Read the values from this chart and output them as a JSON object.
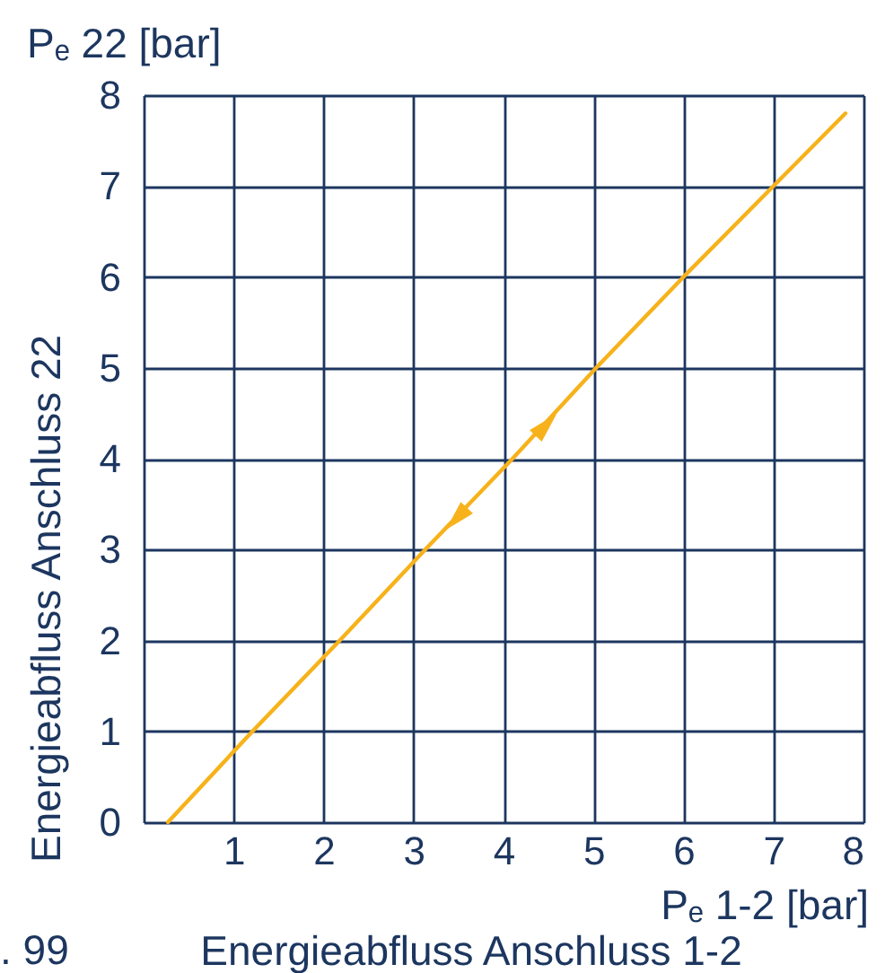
{
  "chart_data": {
    "type": "line",
    "xlabel": "Energieabfluss Anschluss 1-2",
    "ylabel": "Energieabfluss Anschluss 22",
    "annotations": [
      "Pₑ 22 [bar]",
      "Pₑ 1-2 [bar]",
      ". 99"
    ],
    "series": [
      {
        "color": "#f7b21b",
        "x": [
          0.27,
          1.21,
          2.18,
          3.13,
          4.1,
          5.03,
          6,
          7,
          7.8
        ],
        "values": [
          0,
          1,
          2,
          3,
          4,
          5,
          6,
          7,
          7.8
        ]
      },
      {
        "type": "scatter",
        "marker": "triangle",
        "color": "#f7b21b",
        "x": [
          3.51,
          4.44
        ],
        "values": [
          3.37,
          4.34
        ]
      }
    ],
    "xlim": [
      0,
      8
    ],
    "ylim": [
      0,
      8
    ],
    "xticks": [
      {
        "value": 0,
        "label": null
      },
      1,
      2,
      3,
      4,
      5,
      6,
      7,
      8
    ],
    "yticks": [
      0,
      1,
      2,
      3,
      4,
      5,
      6,
      7,
      8
    ],
    "grid": true,
    "line_style": "solid"
  }
}
